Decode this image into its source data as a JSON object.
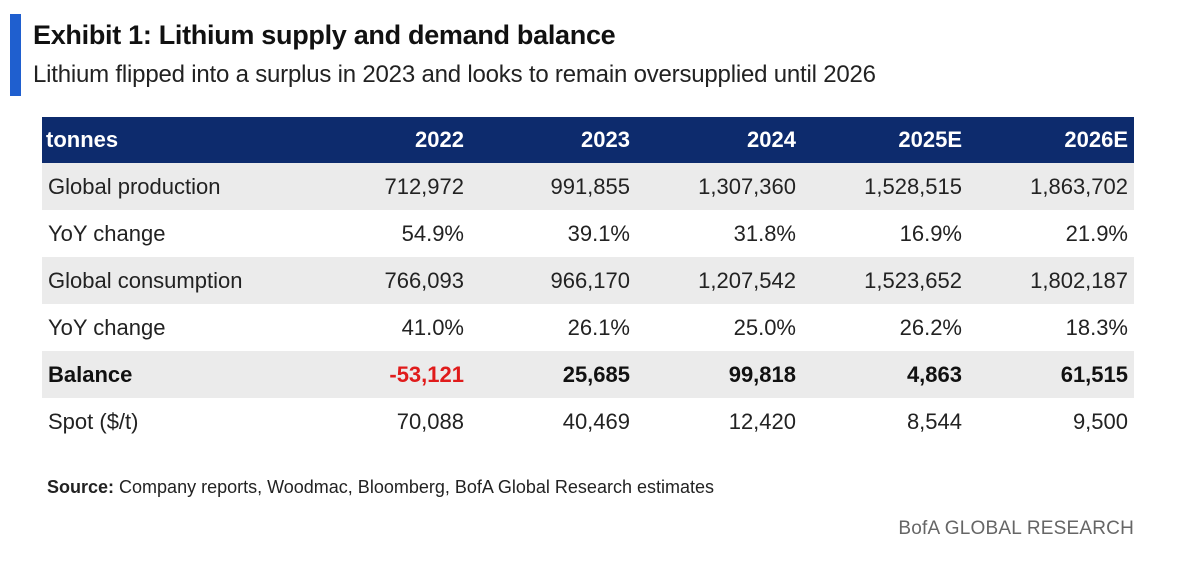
{
  "header": {
    "title": "Exhibit 1: Lithium supply and demand balance",
    "subtitle": "Lithium flipped into a surplus in 2023 and looks to remain oversupplied until 2026",
    "accent_color": "#1f5fcf"
  },
  "table": {
    "header_bg": "#0d2b6d",
    "columns": [
      "tonnes",
      "2022",
      "2023",
      "2024",
      "2025E",
      "2026E"
    ],
    "rows": [
      {
        "label": "Global production",
        "values": [
          "712,972",
          "991,855",
          "1,307,360",
          "1,528,515",
          "1,863,702"
        ]
      },
      {
        "label": "YoY change",
        "values": [
          "54.9%",
          "39.1%",
          "31.8%",
          "16.9%",
          "21.9%"
        ]
      },
      {
        "label": "Global consumption",
        "values": [
          "766,093",
          "966,170",
          "1,207,542",
          "1,523,652",
          "1,802,187"
        ]
      },
      {
        "label": "YoY change",
        "values": [
          "41.0%",
          "26.1%",
          "25.0%",
          "26.2%",
          "18.3%"
        ]
      },
      {
        "label": "Balance",
        "values": [
          "-53,121",
          "25,685",
          "99,818",
          "4,863",
          "61,515"
        ]
      },
      {
        "label": "Spot ($/t)",
        "values": [
          "70,088",
          "40,469",
          "12,420",
          "8,544",
          "9,500"
        ]
      }
    ],
    "negative_color": "#e01b1b"
  },
  "footer": {
    "source_label": "Source:",
    "source_text": "Company reports, Woodmac, Bloomberg, BofA Global Research estimates",
    "brand": "BofA GLOBAL RESEARCH"
  }
}
